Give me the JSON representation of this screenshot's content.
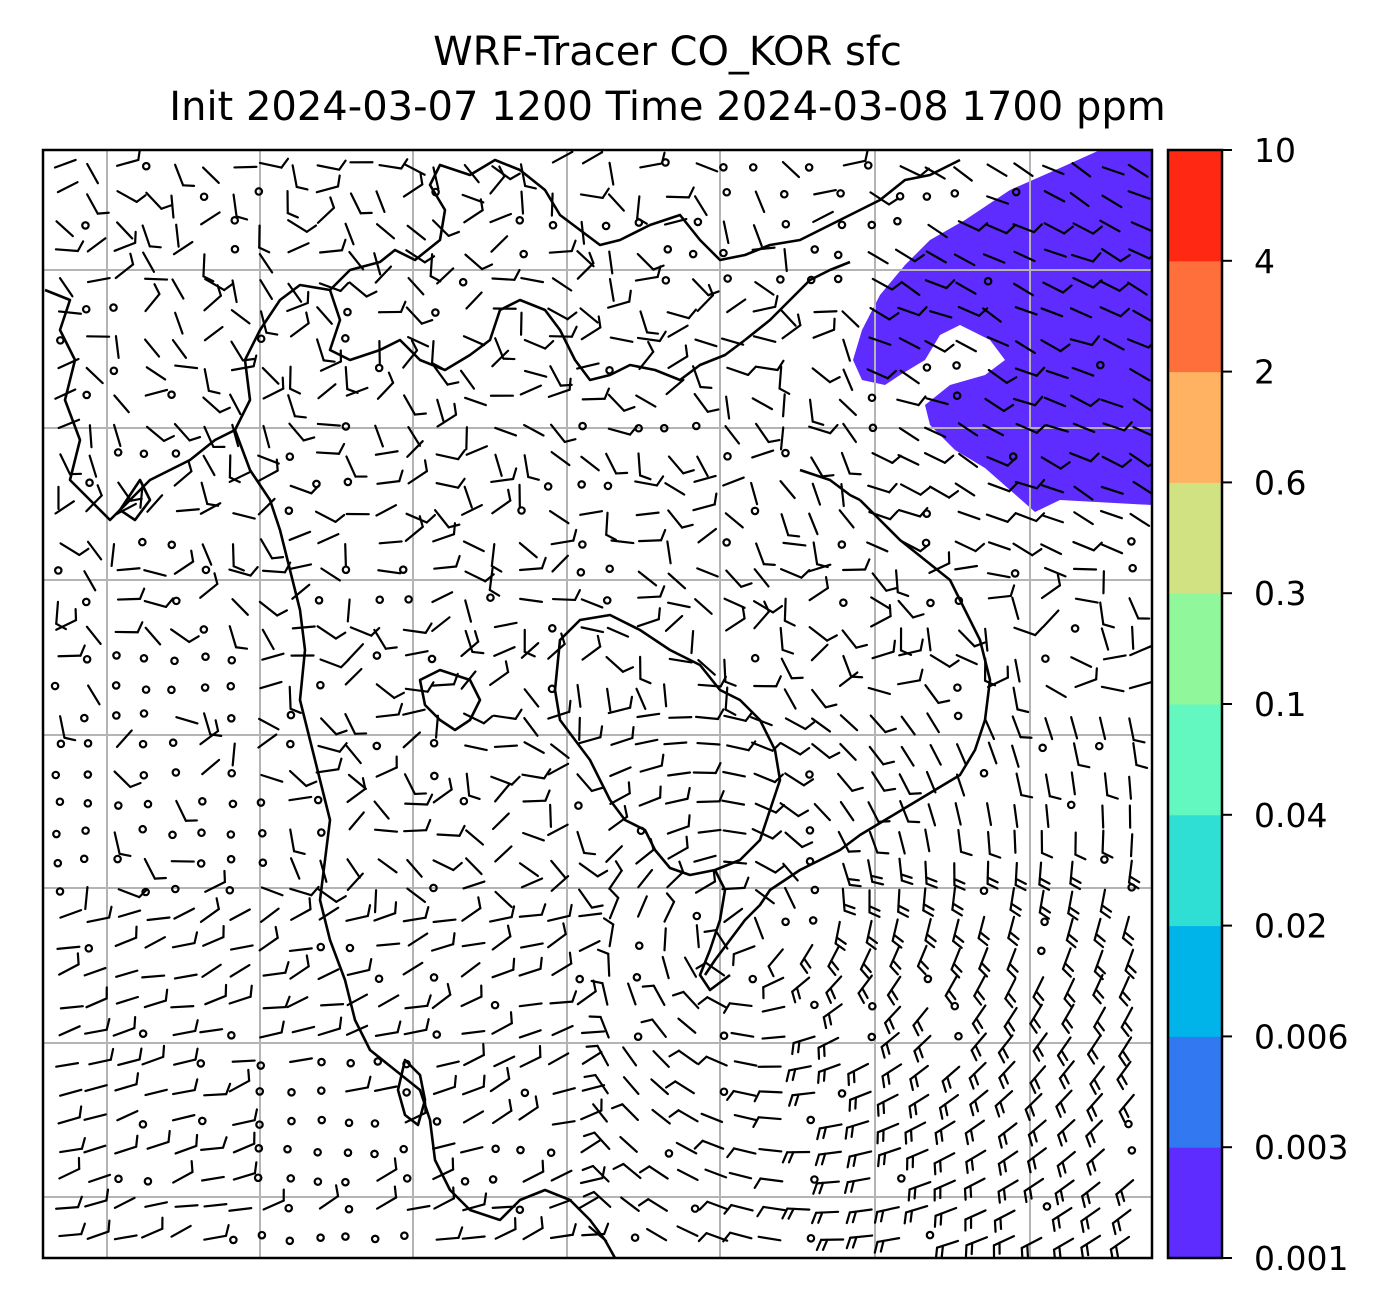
{
  "title": {
    "line1": "WRF-Tracer CO_KOR sfc",
    "line2": "Init 2024-03-07 1200 Time 2024-03-08 1700 ppm"
  },
  "colorbar": {
    "levels": [
      "0.001",
      "0.003",
      "0.006",
      "0.02",
      "0.04",
      "0.1",
      "0.3",
      "0.6",
      "2",
      "4",
      "10"
    ],
    "colors": [
      "#5f2cff",
      "#3278f0",
      "#00b4ea",
      "#30dfd4",
      "#62f8c0",
      "#90f79a",
      "#d1e283",
      "#feb262",
      "#ff6f3b",
      "#ff2813"
    ]
  },
  "plume": {
    "level": "0.001",
    "color": "#5f2cff",
    "region": "northeast corner (top-right)"
  },
  "map": {
    "gridlines": true,
    "gridline_color": "#b4b4b4",
    "coastline_color": "#000000",
    "barb_color": "#000000",
    "content": "surface wind barbs and calm circles over coastlines"
  }
}
